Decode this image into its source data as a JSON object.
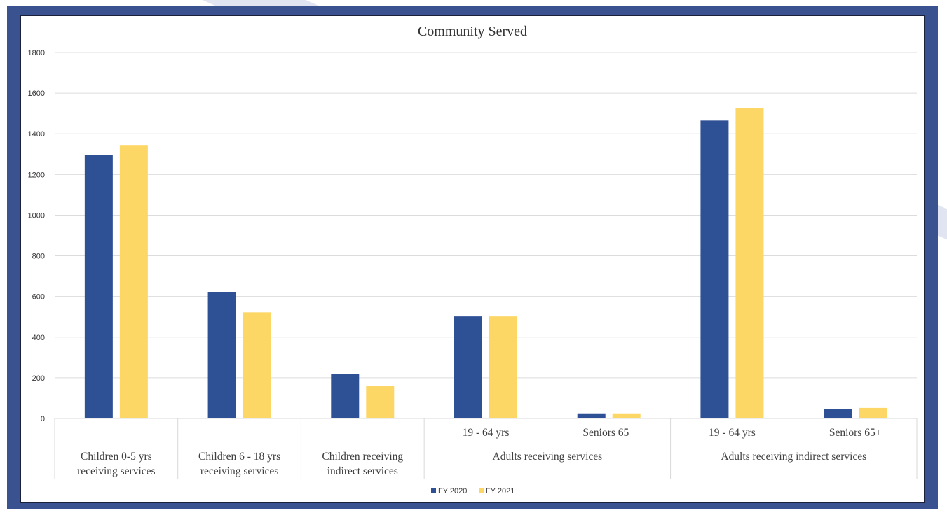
{
  "chart_data": {
    "type": "bar",
    "title": "Community Served",
    "ylim": [
      0,
      1800
    ],
    "yticks": [
      0,
      200,
      400,
      600,
      800,
      1000,
      1200,
      1400,
      1600,
      1800
    ],
    "grid": true,
    "legend_position": "bottom",
    "groups": [
      {
        "label": [
          "Children 0-5 yrs",
          "receiving services"
        ],
        "categories": [
          ""
        ]
      },
      {
        "label": [
          "Children 6 - 18 yrs",
          "receiving services"
        ],
        "categories": [
          ""
        ]
      },
      {
        "label": [
          "Children receiving",
          "indirect services"
        ],
        "categories": [
          ""
        ]
      },
      {
        "label": [
          "Adults receiving services"
        ],
        "categories": [
          "19 - 64 yrs",
          "Seniors 65+"
        ]
      },
      {
        "label": [
          "Adults receiving indirect services"
        ],
        "categories": [
          "19 - 64 yrs",
          "Seniors 65+"
        ]
      }
    ],
    "series": [
      {
        "name": "FY 2020",
        "color": "#2e5095",
        "values": [
          1295,
          622,
          220,
          502,
          25,
          1465,
          48
        ]
      },
      {
        "name": "FY 2021",
        "color": "#fdd766",
        "values": [
          1345,
          522,
          160,
          502,
          25,
          1528,
          52
        ]
      }
    ]
  }
}
